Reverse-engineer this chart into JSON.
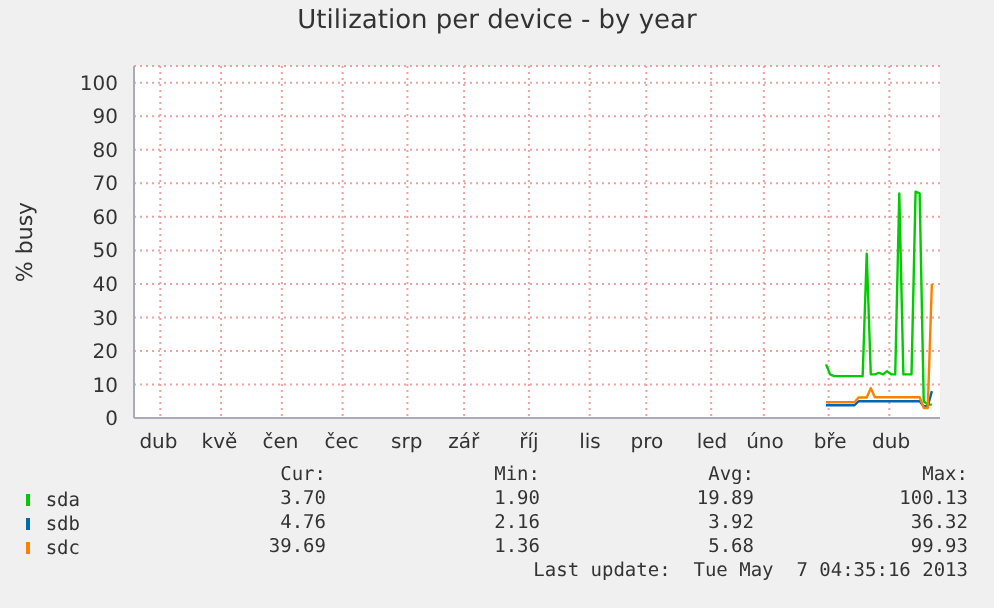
{
  "chart_data": {
    "type": "line",
    "title": "Utilization per device - by year",
    "ylabel": "% busy",
    "categories": [
      null,
      null,
      null,
      null,
      null,
      null,
      "dub",
      null,
      null,
      null,
      null,
      null,
      null,
      null,
      null,
      null,
      null,
      null,
      null,
      null,
      null,
      "kvě",
      null,
      null,
      null,
      null,
      null,
      null,
      null,
      null,
      null,
      null,
      null,
      null,
      null,
      null,
      "čen",
      null,
      null,
      null,
      null,
      null,
      null,
      null,
      null,
      null,
      null,
      null,
      null,
      null,
      null,
      "čec",
      null,
      null,
      null,
      null,
      null,
      null,
      null,
      null,
      null,
      null,
      null,
      null,
      null,
      null,
      null,
      "srp",
      null,
      null,
      null,
      null,
      null,
      null,
      null,
      null,
      null,
      null,
      null,
      null,
      null,
      "zář",
      null,
      null,
      null,
      null,
      null,
      null,
      null,
      null,
      null,
      null,
      null,
      null,
      null,
      null,
      null,
      "říj",
      null,
      null,
      null,
      null,
      null,
      null,
      null,
      null,
      null,
      null,
      null,
      null,
      null,
      null,
      "lis",
      null,
      null,
      null,
      null,
      null,
      null,
      null,
      null,
      null,
      null,
      null,
      null,
      null,
      "pro",
      null,
      null,
      null,
      null,
      null,
      null,
      null,
      null,
      null,
      null,
      null,
      null,
      null,
      null,
      null,
      "led",
      null,
      null,
      null,
      null,
      null,
      null,
      null,
      null,
      null,
      null,
      null,
      null,
      "úno",
      null,
      null,
      null,
      null,
      null,
      null,
      null,
      null,
      null,
      null,
      null,
      null,
      null,
      null,
      null,
      "bře",
      null,
      null,
      null,
      null,
      null,
      null,
      null,
      null,
      null,
      null,
      null,
      null,
      null,
      null,
      "dub",
      null,
      null,
      null,
      null,
      null,
      null,
      null,
      null,
      null,
      null,
      null,
      null
    ],
    "ylim": [
      0,
      105
    ],
    "yticks": [
      0,
      10,
      20,
      30,
      40,
      50,
      60,
      70,
      80,
      90,
      100
    ],
    "grid": true,
    "legend": "bottom",
    "marker": "none",
    "line_style": "solid",
    "series": [
      {
        "name": "sda",
        "color": "#00cc00",
        "values": [
          null,
          null,
          null,
          null,
          null,
          null,
          null,
          null,
          null,
          null,
          null,
          null,
          null,
          null,
          null,
          null,
          null,
          null,
          null,
          null,
          null,
          null,
          null,
          null,
          null,
          null,
          null,
          null,
          null,
          null,
          null,
          null,
          null,
          null,
          null,
          null,
          null,
          null,
          null,
          null,
          null,
          null,
          null,
          null,
          null,
          null,
          null,
          null,
          null,
          null,
          null,
          null,
          null,
          null,
          null,
          null,
          null,
          null,
          null,
          null,
          null,
          null,
          null,
          null,
          null,
          null,
          null,
          null,
          null,
          null,
          null,
          null,
          null,
          null,
          null,
          null,
          null,
          null,
          null,
          null,
          null,
          null,
          null,
          null,
          null,
          null,
          null,
          null,
          null,
          null,
          null,
          null,
          null,
          null,
          null,
          null,
          null,
          null,
          null,
          null,
          null,
          null,
          null,
          null,
          null,
          null,
          null,
          null,
          null,
          null,
          null,
          null,
          null,
          null,
          null,
          null,
          null,
          null,
          null,
          null,
          null,
          null,
          null,
          null,
          null,
          null,
          null,
          null,
          null,
          null,
          null,
          null,
          null,
          null,
          null,
          null,
          null,
          null,
          null,
          null,
          null,
          null,
          null,
          null,
          null,
          null,
          null,
          null,
          null,
          null,
          null,
          null,
          null,
          null,
          null,
          null,
          null,
          null,
          null,
          null,
          null,
          null,
          null,
          null,
          null,
          null,
          null,
          null,
          null,
          null,
          16,
          13,
          12.5,
          12.5,
          12.5,
          12.5,
          12.5,
          12.5,
          12.5,
          12.5,
          49,
          13,
          13,
          13.5,
          13,
          14,
          13,
          13,
          67,
          13,
          13,
          13,
          67.5,
          67,
          5,
          4,
          4,
          null,
          null
        ]
      },
      {
        "name": "sdb",
        "color": "#0066b3",
        "values": [
          null,
          null,
          null,
          null,
          null,
          null,
          null,
          null,
          null,
          null,
          null,
          null,
          null,
          null,
          null,
          null,
          null,
          null,
          null,
          null,
          null,
          null,
          null,
          null,
          null,
          null,
          null,
          null,
          null,
          null,
          null,
          null,
          null,
          null,
          null,
          null,
          null,
          null,
          null,
          null,
          null,
          null,
          null,
          null,
          null,
          null,
          null,
          null,
          null,
          null,
          null,
          null,
          null,
          null,
          null,
          null,
          null,
          null,
          null,
          null,
          null,
          null,
          null,
          null,
          null,
          null,
          null,
          null,
          null,
          null,
          null,
          null,
          null,
          null,
          null,
          null,
          null,
          null,
          null,
          null,
          null,
          null,
          null,
          null,
          null,
          null,
          null,
          null,
          null,
          null,
          null,
          null,
          null,
          null,
          null,
          null,
          null,
          null,
          null,
          null,
          null,
          null,
          null,
          null,
          null,
          null,
          null,
          null,
          null,
          null,
          null,
          null,
          null,
          null,
          null,
          null,
          null,
          null,
          null,
          null,
          null,
          null,
          null,
          null,
          null,
          null,
          null,
          null,
          null,
          null,
          null,
          null,
          null,
          null,
          null,
          null,
          null,
          null,
          null,
          null,
          null,
          null,
          null,
          null,
          null,
          null,
          null,
          null,
          null,
          null,
          null,
          null,
          null,
          null,
          null,
          null,
          null,
          null,
          null,
          null,
          null,
          null,
          null,
          null,
          null,
          null,
          null,
          null,
          null,
          null,
          3.8,
          3.8,
          3.8,
          3.8,
          3.8,
          3.8,
          3.8,
          3.8,
          5,
          5,
          5,
          5,
          5,
          5,
          5,
          5,
          5,
          5,
          5,
          5,
          5,
          5,
          5,
          5,
          3.5,
          3.5,
          8,
          null,
          null
        ]
      },
      {
        "name": "sdc",
        "color": "#ff8000",
        "values": [
          null,
          null,
          null,
          null,
          null,
          null,
          null,
          null,
          null,
          null,
          null,
          null,
          null,
          null,
          null,
          null,
          null,
          null,
          null,
          null,
          null,
          null,
          null,
          null,
          null,
          null,
          null,
          null,
          null,
          null,
          null,
          null,
          null,
          null,
          null,
          null,
          null,
          null,
          null,
          null,
          null,
          null,
          null,
          null,
          null,
          null,
          null,
          null,
          null,
          null,
          null,
          null,
          null,
          null,
          null,
          null,
          null,
          null,
          null,
          null,
          null,
          null,
          null,
          null,
          null,
          null,
          null,
          null,
          null,
          null,
          null,
          null,
          null,
          null,
          null,
          null,
          null,
          null,
          null,
          null,
          null,
          null,
          null,
          null,
          null,
          null,
          null,
          null,
          null,
          null,
          null,
          null,
          null,
          null,
          null,
          null,
          null,
          null,
          null,
          null,
          null,
          null,
          null,
          null,
          null,
          null,
          null,
          null,
          null,
          null,
          null,
          null,
          null,
          null,
          null,
          null,
          null,
          null,
          null,
          null,
          null,
          null,
          null,
          null,
          null,
          null,
          null,
          null,
          null,
          null,
          null,
          null,
          null,
          null,
          null,
          null,
          null,
          null,
          null,
          null,
          null,
          null,
          null,
          null,
          null,
          null,
          null,
          null,
          null,
          null,
          null,
          null,
          null,
          null,
          null,
          null,
          null,
          null,
          null,
          null,
          null,
          null,
          null,
          null,
          null,
          null,
          null,
          null,
          null,
          null,
          4.7,
          4.7,
          4.7,
          4.7,
          4.7,
          4.7,
          4.7,
          4.7,
          6.1,
          6.1,
          6.1,
          8.9,
          6.2,
          6.2,
          6.2,
          6.2,
          6.2,
          6.2,
          6.2,
          6.2,
          6.2,
          6.2,
          6.2,
          6.2,
          3,
          3,
          40,
          null,
          null
        ]
      }
    ],
    "annotations": [
      "Cur:",
      "Min:",
      "Avg:",
      "Max:",
      "3.70",
      "1.90",
      "19.89",
      "100.13",
      "4.76",
      "2.16",
      "3.92",
      "36.32",
      "39.69",
      "1.36",
      "5.68",
      "99.93",
      "Last update:  Tue May  7 04:35:16 2013"
    ]
  }
}
